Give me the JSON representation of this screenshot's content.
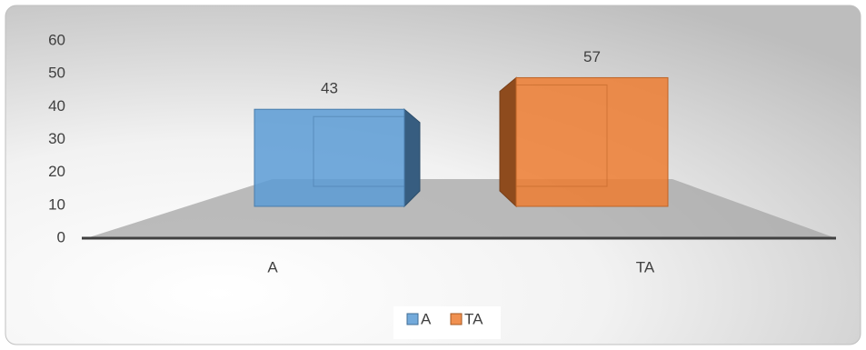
{
  "chart_data": {
    "type": "bar3d",
    "categories": [
      "A",
      "TA"
    ],
    "series": [
      {
        "name": "A",
        "color": "#5b9bd5",
        "values": [
          43,
          null
        ]
      },
      {
        "name": "TA",
        "color": "#ed7d31",
        "values": [
          null,
          57
        ]
      }
    ],
    "ylim": [
      0,
      60
    ],
    "yticks": [
      0,
      10,
      20,
      30,
      40,
      50,
      60
    ],
    "legend": "bottom"
  }
}
